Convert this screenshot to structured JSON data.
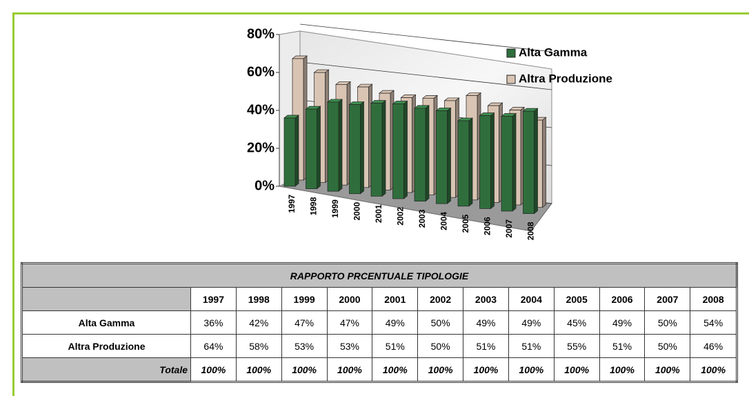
{
  "chart_data": {
    "type": "bar3d",
    "categories": [
      "1997",
      "1998",
      "1999",
      "2000",
      "2001",
      "2002",
      "2003",
      "2004",
      "2005",
      "2006",
      "2007",
      "2008"
    ],
    "series": [
      {
        "name": "Alta Gamma",
        "color": "#2f6e3c",
        "values": [
          36,
          42,
          47,
          47,
          49,
          50,
          49,
          49,
          45,
          49,
          50,
          54
        ],
        "value_labels": [
          "36%",
          "42%",
          "47%",
          "47%",
          "49%",
          "50%",
          "49%",
          "49%",
          "45%",
          "49%",
          "50%",
          "54%"
        ]
      },
      {
        "name": "Altra Produzione",
        "color": "#d9c4b3",
        "values": [
          64,
          58,
          53,
          53,
          51,
          50,
          51,
          51,
          55,
          51,
          50,
          46
        ],
        "value_labels": [
          "64%",
          "58%",
          "53%",
          "53%",
          "51%",
          "50%",
          "51%",
          "51%",
          "55%",
          "51%",
          "50%",
          "46%"
        ]
      }
    ],
    "ylim": [
      0,
      80
    ],
    "yticks": [
      {
        "value": 0,
        "label": "0%"
      },
      {
        "value": 20,
        "label": "20%"
      },
      {
        "value": 40,
        "label": "40%"
      },
      {
        "value": 60,
        "label": "60%"
      },
      {
        "value": 80,
        "label": "80%"
      }
    ],
    "grid": true,
    "legend": "top-right"
  },
  "table": {
    "title": "RAPPORTO PRCENTUALE TIPOLOGIE",
    "total_label": "Totale",
    "totals": [
      "100%",
      "100%",
      "100%",
      "100%",
      "100%",
      "100%",
      "100%",
      "100%",
      "100%",
      "100%",
      "100%",
      "100%"
    ]
  }
}
